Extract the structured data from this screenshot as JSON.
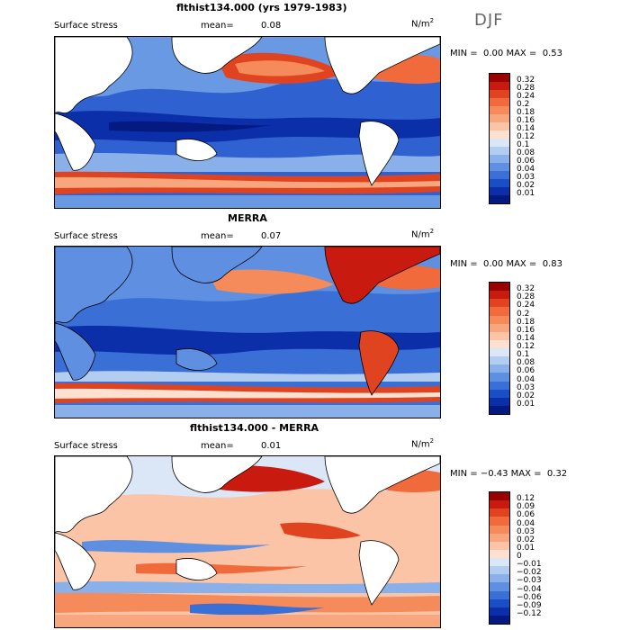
{
  "season": "DJF",
  "panels": [
    {
      "title": "flthist134.000 (yrs 1979-1983)",
      "var_label": "Surface stress",
      "mean_label": "mean=",
      "mean_value": "0.08",
      "units": "N/m",
      "units_exp": "2",
      "min_label": "MIN =",
      "min_value": "0.00",
      "max_label": "MAX =",
      "max_value": "0.53",
      "levels": [
        "0.32",
        "0.28",
        "0.24",
        "0.2",
        "0.18",
        "0.16",
        "0.14",
        "0.12",
        "0.1",
        "0.08",
        "0.06",
        "0.04",
        "0.03",
        "0.02",
        "0.01"
      ],
      "colors": [
        "#990000",
        "#c81a0e",
        "#e0431f",
        "#f06a3c",
        "#f58a5a",
        "#f8a67d",
        "#fbc4a6",
        "#fde0cf",
        "#dbe7f7",
        "#b3cdf1",
        "#8ab0ea",
        "#5e8fe0",
        "#3a6fd6",
        "#1a4ec4",
        "#0a2fa8",
        "#041a80"
      ]
    },
    {
      "title": "MERRA",
      "var_label": "Surface stress",
      "mean_label": "mean=",
      "mean_value": "0.07",
      "units": "N/m",
      "units_exp": "2",
      "min_label": "MIN =",
      "min_value": "0.00",
      "max_label": "MAX =",
      "max_value": "0.83",
      "levels": [
        "0.32",
        "0.28",
        "0.24",
        "0.2",
        "0.18",
        "0.16",
        "0.14",
        "0.12",
        "0.1",
        "0.08",
        "0.06",
        "0.04",
        "0.03",
        "0.02",
        "0.01"
      ],
      "colors": [
        "#990000",
        "#c81a0e",
        "#e0431f",
        "#f06a3c",
        "#f58a5a",
        "#f8a67d",
        "#fbc4a6",
        "#fde0cf",
        "#dbe7f7",
        "#b3cdf1",
        "#8ab0ea",
        "#5e8fe0",
        "#3a6fd6",
        "#1a4ec4",
        "#0a2fa8",
        "#041a80"
      ]
    },
    {
      "title": "flthist134.000 - MERRA",
      "var_label": "Surface stress",
      "mean_label": "mean=",
      "mean_value": "0.01",
      "units": "N/m",
      "units_exp": "2",
      "min_label": "MIN =",
      "min_value": "−0.43",
      "max_label": "MAX =",
      "max_value": "0.32",
      "levels": [
        "0.12",
        "0.09",
        "0.06",
        "0.04",
        "0.03",
        "0.02",
        "0.01",
        "0",
        "−0.01",
        "−0.02",
        "−0.03",
        "−0.04",
        "−0.06",
        "−0.09",
        "−0.12"
      ],
      "colors": [
        "#990000",
        "#c81a0e",
        "#e0431f",
        "#f06a3c",
        "#f58a5a",
        "#f8a67d",
        "#fbc4a6",
        "#fde0cf",
        "#dbe7f7",
        "#b3cdf1",
        "#8ab0ea",
        "#5e8fe0",
        "#3a6fd6",
        "#1a4ec4",
        "#0a2fa8",
        "#041a80"
      ]
    }
  ]
}
